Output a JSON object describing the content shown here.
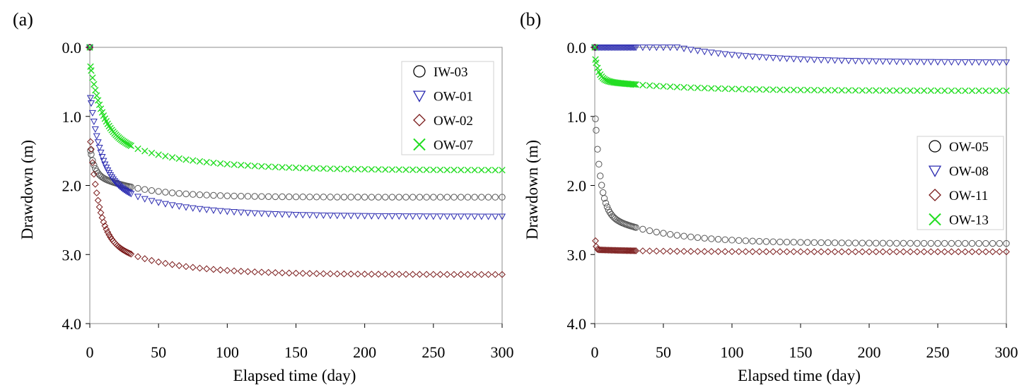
{
  "chart_data": [
    {
      "type": "scatter",
      "panel_label": "(a)",
      "title": "",
      "xlabel": "Elapsed time (day)",
      "ylabel": "Drawdown (m)",
      "xlim": [
        0,
        300
      ],
      "ylim": [
        0,
        4
      ],
      "y_inverted": true,
      "xticks": [
        0,
        50,
        100,
        150,
        200,
        250,
        300
      ],
      "xtick_labels": [
        "0",
        "50",
        "100",
        "150",
        "200",
        "250",
        "300"
      ],
      "yticks": [
        0,
        1,
        2,
        3,
        4
      ],
      "ytick_labels": [
        "0.0",
        "1.0",
        "2.0",
        "3.0",
        "4.0"
      ],
      "grid": false,
      "legend_position": "top-right",
      "series": [
        {
          "name": "IW-03",
          "marker": "circle",
          "color": "#555555",
          "s_max": 2.17,
          "tau": 3.0,
          "pump_start": 1.43,
          "jump_day": 0,
          "amp_late": 0.35,
          "tau_late": 35
        },
        {
          "name": "OW-01",
          "marker": "triangle-down",
          "color": "#2b2bb0",
          "s_max": 2.45,
          "tau": 8.0,
          "pump_start": 0.65,
          "jump_day": 0,
          "amp_late": 0.55,
          "tau_late": 50
        },
        {
          "name": "OW-02",
          "marker": "diamond",
          "color": "#7a1a1a",
          "s_max": 3.29,
          "tau": 6.5,
          "pump_start": 1.25,
          "jump_day": 0,
          "amp_late": 0.55,
          "tau_late": 45
        },
        {
          "name": "OW-07",
          "marker": "x",
          "color": "#22dd22",
          "s_max": 1.78,
          "tau": 9.0,
          "pump_start": 0.22,
          "jump_day": 0,
          "amp_late": 0.55,
          "tau_late": 55
        }
      ]
    },
    {
      "type": "scatter",
      "panel_label": "(b)",
      "title": "",
      "xlabel": "Elapsed time (day)",
      "ylabel": "Drawdown (m)",
      "xlim": [
        0,
        300
      ],
      "ylim": [
        0,
        4
      ],
      "y_inverted": true,
      "xticks": [
        0,
        50,
        100,
        150,
        200,
        250,
        300
      ],
      "xtick_labels": [
        "0",
        "50",
        "100",
        "150",
        "200",
        "250",
        "300"
      ],
      "yticks": [
        0,
        1,
        2,
        3,
        4
      ],
      "ytick_labels": [
        "0.0",
        "1.0",
        "2.0",
        "3.0",
        "4.0"
      ],
      "grid": false,
      "legend_position": "center-right",
      "series": [
        {
          "name": "OW-05",
          "marker": "circle",
          "color": "#555555",
          "s_max": 2.84,
          "tau": 4.0,
          "pump_start": 0.85,
          "jump_day": 0,
          "amp_late": 0.45,
          "tau_late": 45
        },
        {
          "name": "OW-08",
          "marker": "triangle-down",
          "color": "#2b2bb0",
          "s_max": 0.22,
          "tau": 4.0,
          "pump_start": 0.02,
          "jump_day": 0,
          "amp_late": 0.6,
          "tau_late": 60
        },
        {
          "name": "OW-11",
          "marker": "diamond",
          "color": "#7a1a1a",
          "s_max": 2.96,
          "tau": 0.5,
          "pump_start": 2.58,
          "jump_day": 0,
          "amp_late": 0.03,
          "tau_late": 40
        },
        {
          "name": "OW-13",
          "marker": "x",
          "color": "#22dd22",
          "s_max": 0.63,
          "tau": 3.0,
          "pump_start": 0.12,
          "jump_day": 0,
          "amp_late": 0.15,
          "tau_late": 60
        }
      ]
    }
  ]
}
